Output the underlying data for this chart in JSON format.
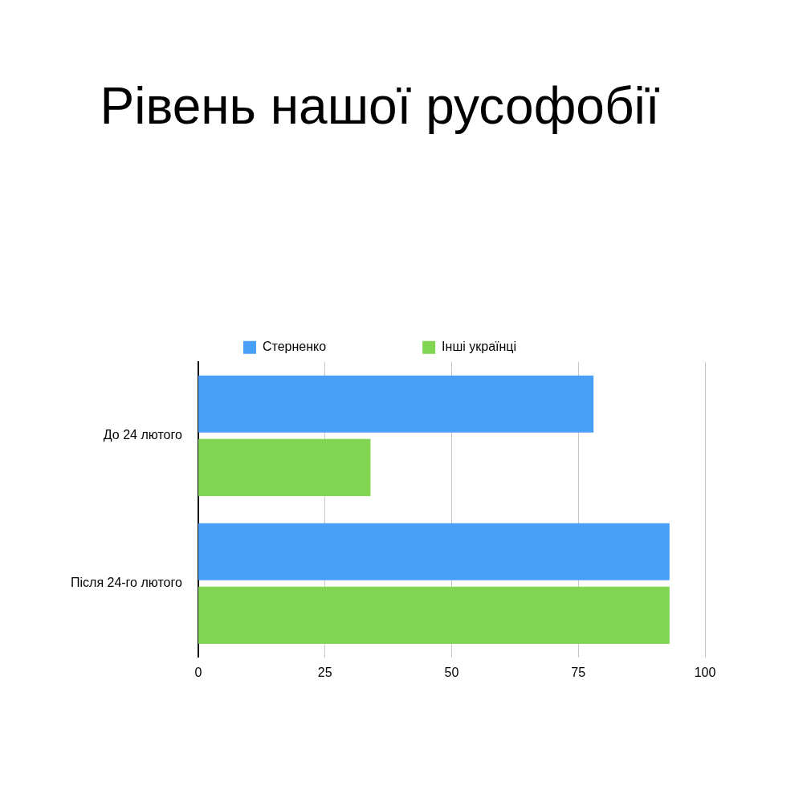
{
  "chart_data": {
    "type": "bar",
    "title": "Рівень нашої русофобії",
    "orientation": "horizontal",
    "categories": [
      "До 24 лютого",
      "Після 24-го лютого"
    ],
    "series": [
      {
        "name": "Стерненко",
        "color": "#479ff8",
        "values": [
          78,
          93
        ]
      },
      {
        "name": "Інші українці",
        "color": "#81d552",
        "values": [
          34,
          93
        ]
      }
    ],
    "xlim": [
      0,
      100
    ],
    "xticks": [
      0,
      25,
      50,
      75,
      100
    ],
    "grid": "x",
    "legend": "top"
  }
}
